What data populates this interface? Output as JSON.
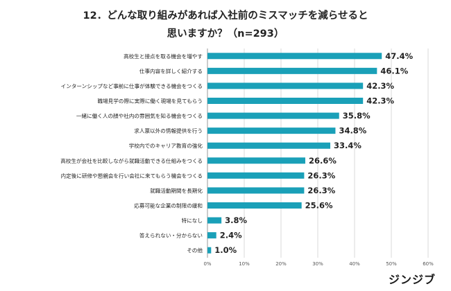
{
  "title": {
    "line1": "12．どんな取り組みがあれば入社前のミスマッチを減らせると",
    "line2": "思いますか？（n=293）"
  },
  "logo": "ジンジブ",
  "colors": {
    "bar": "#1aa0b8",
    "grid": "#d9d9d9",
    "axis": "#999999",
    "text": "#222222"
  },
  "chart_data": {
    "type": "bar",
    "orientation": "horizontal",
    "title": "12．どんな取り組みがあれば入社前のミスマッチを減らせると思いますか？（n=293）",
    "categories": [
      "高校生と接点を取る機会を増やす",
      "仕事内容を詳しく紹介する",
      "インターンシップなど事前に仕事が体験できる機会をつくる",
      "職場見学の際に実際に働く現場を見てもらう",
      "一緒に働く人の顔や社内の雰囲気を知る機会をつくる",
      "求人票以外の情報提供を行う",
      "学校内でのキャリア教育の強化",
      "高校生が会社を比較しながら就職活動できる仕組みをつくる",
      "内定後に研修や懇親会を行い会社に来てもらう機会をつくる",
      "就職活動期間を長期化",
      "応募可能な企業の制限の緩和",
      "特になし",
      "答えられない・分からない",
      "その他"
    ],
    "values": [
      47.4,
      46.1,
      42.3,
      42.3,
      35.8,
      34.8,
      33.4,
      26.6,
      26.3,
      26.3,
      25.6,
      3.8,
      2.4,
      1.0
    ],
    "value_labels": [
      "47.4%",
      "46.1%",
      "42.3%",
      "42.3%",
      "35.8%",
      "34.8%",
      "33.4%",
      "26.6%",
      "26.3%",
      "26.3%",
      "25.6%",
      "3.8%",
      "2.4%",
      "1.0%"
    ],
    "xlim": [
      0,
      60
    ],
    "xticks": [
      0,
      10,
      20,
      30,
      40,
      50,
      60
    ],
    "xtick_labels": [
      "0%",
      "10%",
      "20%",
      "30%",
      "40%",
      "50%",
      "60%"
    ],
    "grid": true,
    "legend": "none"
  }
}
